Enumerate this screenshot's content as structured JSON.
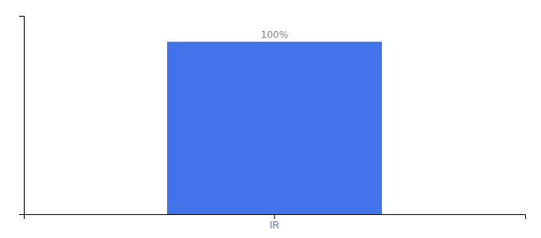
{
  "chart_data": {
    "type": "bar",
    "categories": [
      "IR"
    ],
    "values": [
      100
    ],
    "value_labels": [
      "100%"
    ],
    "color": "#4472e8",
    "ylim": [
      0,
      115
    ],
    "data_labels": true,
    "tick_labels": "x"
  }
}
